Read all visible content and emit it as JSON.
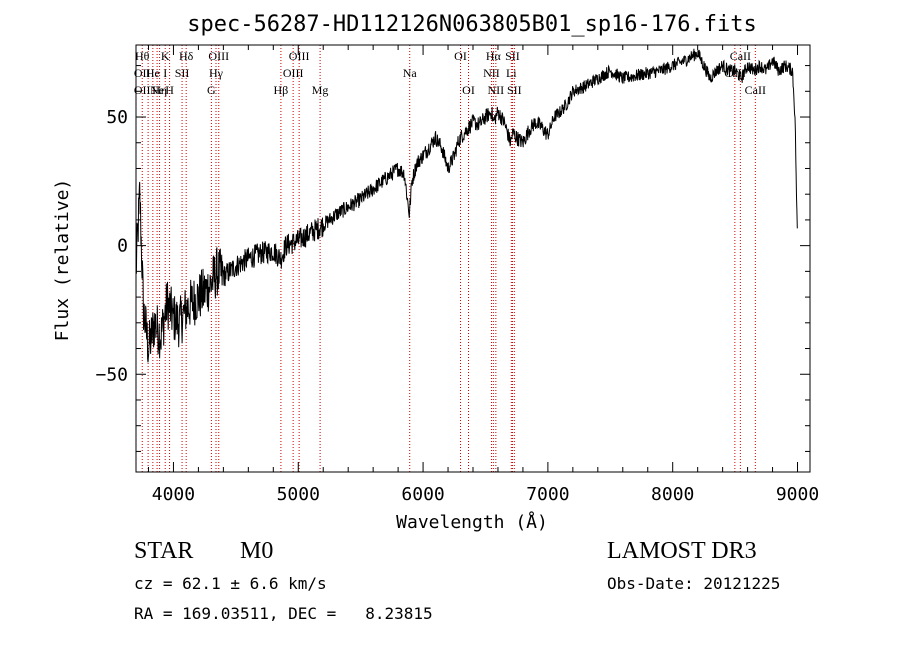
{
  "chart_data": {
    "type": "line",
    "title": "spec-56287-HD112126N063805B01_sp16-176.fits",
    "xlabel": "Wavelength (Å)",
    "ylabel": "Flux (relative)",
    "xlim": [
      3700,
      9100
    ],
    "ylim": [
      -88,
      78
    ],
    "xticks": [
      4000,
      5000,
      6000,
      7000,
      8000,
      9000
    ],
    "xtick_labels": [
      "4000",
      "5000",
      "6000",
      "7000",
      "8000",
      "9000"
    ],
    "yticks": [
      -50,
      0,
      50
    ],
    "ytick_labels": [
      "−50",
      "0",
      "50"
    ],
    "grid": false,
    "series": [
      {
        "name": "spectrum",
        "x": [
          3700,
          3730,
          3760,
          3800,
          3850,
          3900,
          3950,
          4000,
          4050,
          4100,
          4150,
          4200,
          4250,
          4300,
          4350,
          4400,
          4500,
          4600,
          4700,
          4800,
          4861,
          4900,
          5000,
          5100,
          5200,
          5300,
          5400,
          5500,
          5600,
          5700,
          5800,
          5850,
          5890,
          5910,
          5950,
          6000,
          6100,
          6150,
          6200,
          6250,
          6280,
          6300,
          6350,
          6400,
          6450,
          6500,
          6550,
          6563,
          6600,
          6650,
          6700,
          6720,
          6750,
          6800,
          6850,
          6900,
          6950,
          7000,
          7050,
          7100,
          7150,
          7200,
          7300,
          7400,
          7500,
          7600,
          7700,
          7800,
          7900,
          8000,
          8100,
          8200,
          8250,
          8300,
          8350,
          8400,
          8450,
          8500,
          8550,
          8600,
          8650,
          8700,
          8750,
          8800,
          8850,
          8900,
          8960,
          8980,
          9000
        ],
        "y": [
          -10,
          20,
          -25,
          -40,
          -30,
          -35,
          -22,
          -28,
          -30,
          -25,
          -22,
          -20,
          -18,
          -15,
          -10,
          -12,
          -8,
          -5,
          -3,
          -2,
          -5,
          0,
          2,
          5,
          8,
          12,
          15,
          18,
          22,
          26,
          30,
          28,
          12,
          25,
          32,
          35,
          42,
          38,
          30,
          35,
          40,
          42,
          45,
          48,
          47,
          50,
          52,
          48,
          52,
          48,
          40,
          44,
          42,
          40,
          45,
          48,
          46,
          43,
          50,
          52,
          55,
          60,
          62,
          65,
          68,
          65,
          66,
          67,
          68,
          70,
          72,
          75,
          70,
          65,
          68,
          70,
          68,
          68,
          65,
          70,
          68,
          70,
          68,
          72,
          68,
          70,
          68,
          50,
          0
        ]
      }
    ],
    "lines": [
      {
        "wl": 3750,
        "labels": [
          {
            "text": "Hθ",
            "row": 0
          },
          {
            "text": "OII",
            "row": 1
          },
          {
            "text": "OII",
            "row": 2
          }
        ]
      },
      {
        "wl": 3797,
        "labels": []
      },
      {
        "wl": 3835,
        "labels": [
          {
            "text": "He",
            "row": 1
          }
        ]
      },
      {
        "wl": 3869,
        "labels": [
          {
            "text": "Ne",
            "row": 2
          }
        ]
      },
      {
        "wl": 3889,
        "labels": [
          {
            "text": "Hη",
            "row": 2
          }
        ]
      },
      {
        "wl": 3934,
        "labels": [
          {
            "text": "K",
            "row": 0
          },
          {
            "text": "I",
            "row": 1
          }
        ]
      },
      {
        "wl": 3969,
        "labels": [
          {
            "text": "H",
            "row": 2
          }
        ]
      },
      {
        "wl": 4069,
        "labels": [
          {
            "text": "SII",
            "row": 1
          }
        ]
      },
      {
        "wl": 4102,
        "labels": [
          {
            "text": "Hδ",
            "row": 0
          }
        ]
      },
      {
        "wl": 4304,
        "labels": [
          {
            "text": "G",
            "row": 2
          }
        ]
      },
      {
        "wl": 4341,
        "labels": [
          {
            "text": "Hγ",
            "row": 1
          }
        ]
      },
      {
        "wl": 4363,
        "labels": [
          {
            "text": "OIII",
            "row": 0
          }
        ]
      },
      {
        "wl": 4861,
        "labels": [
          {
            "text": "Hβ",
            "row": 2
          }
        ]
      },
      {
        "wl": 4959,
        "labels": [
          {
            "text": "OIII",
            "row": 1
          }
        ]
      },
      {
        "wl": 5007,
        "labels": [
          {
            "text": "OIII",
            "row": 0
          }
        ]
      },
      {
        "wl": 5175,
        "labels": [
          {
            "text": "Mg",
            "row": 2
          }
        ]
      },
      {
        "wl": 5893,
        "labels": [
          {
            "text": "Na",
            "row": 1
          }
        ]
      },
      {
        "wl": 6300,
        "labels": [
          {
            "text": "OI",
            "row": 0
          }
        ]
      },
      {
        "wl": 6364,
        "labels": [
          {
            "text": "OI",
            "row": 2
          }
        ]
      },
      {
        "wl": 6548,
        "labels": [
          {
            "text": "NII",
            "row": 1
          }
        ]
      },
      {
        "wl": 6563,
        "labels": [
          {
            "text": "Hα",
            "row": 0
          }
        ]
      },
      {
        "wl": 6583,
        "labels": [
          {
            "text": "NII",
            "row": 2
          }
        ]
      },
      {
        "wl": 6707,
        "labels": [
          {
            "text": "Li",
            "row": 1
          }
        ]
      },
      {
        "wl": 6716,
        "labels": [
          {
            "text": "SII",
            "row": 0
          }
        ]
      },
      {
        "wl": 6731,
        "labels": [
          {
            "text": "SII",
            "row": 2
          }
        ]
      },
      {
        "wl": 8498,
        "labels": [
          {
            "text": "CaII",
            "row": 1
          }
        ]
      },
      {
        "wl": 8542,
        "labels": [
          {
            "text": "CaII",
            "row": 0
          }
        ]
      },
      {
        "wl": 8662,
        "labels": [
          {
            "text": "CaII",
            "row": 2
          }
        ]
      }
    ]
  },
  "info": {
    "object_class": "STAR",
    "subclass": "M0",
    "survey": "LAMOST DR3",
    "redshift": "cz = 62.1 ± 6.6 km/s",
    "obs_date": "Obs-Date: 20121225",
    "coords": "RA = 169.03511, DEC =   8.23815"
  },
  "colors": {
    "line_marker": "#cc0000",
    "spectrum": "#000000",
    "axes": "#000000"
  }
}
